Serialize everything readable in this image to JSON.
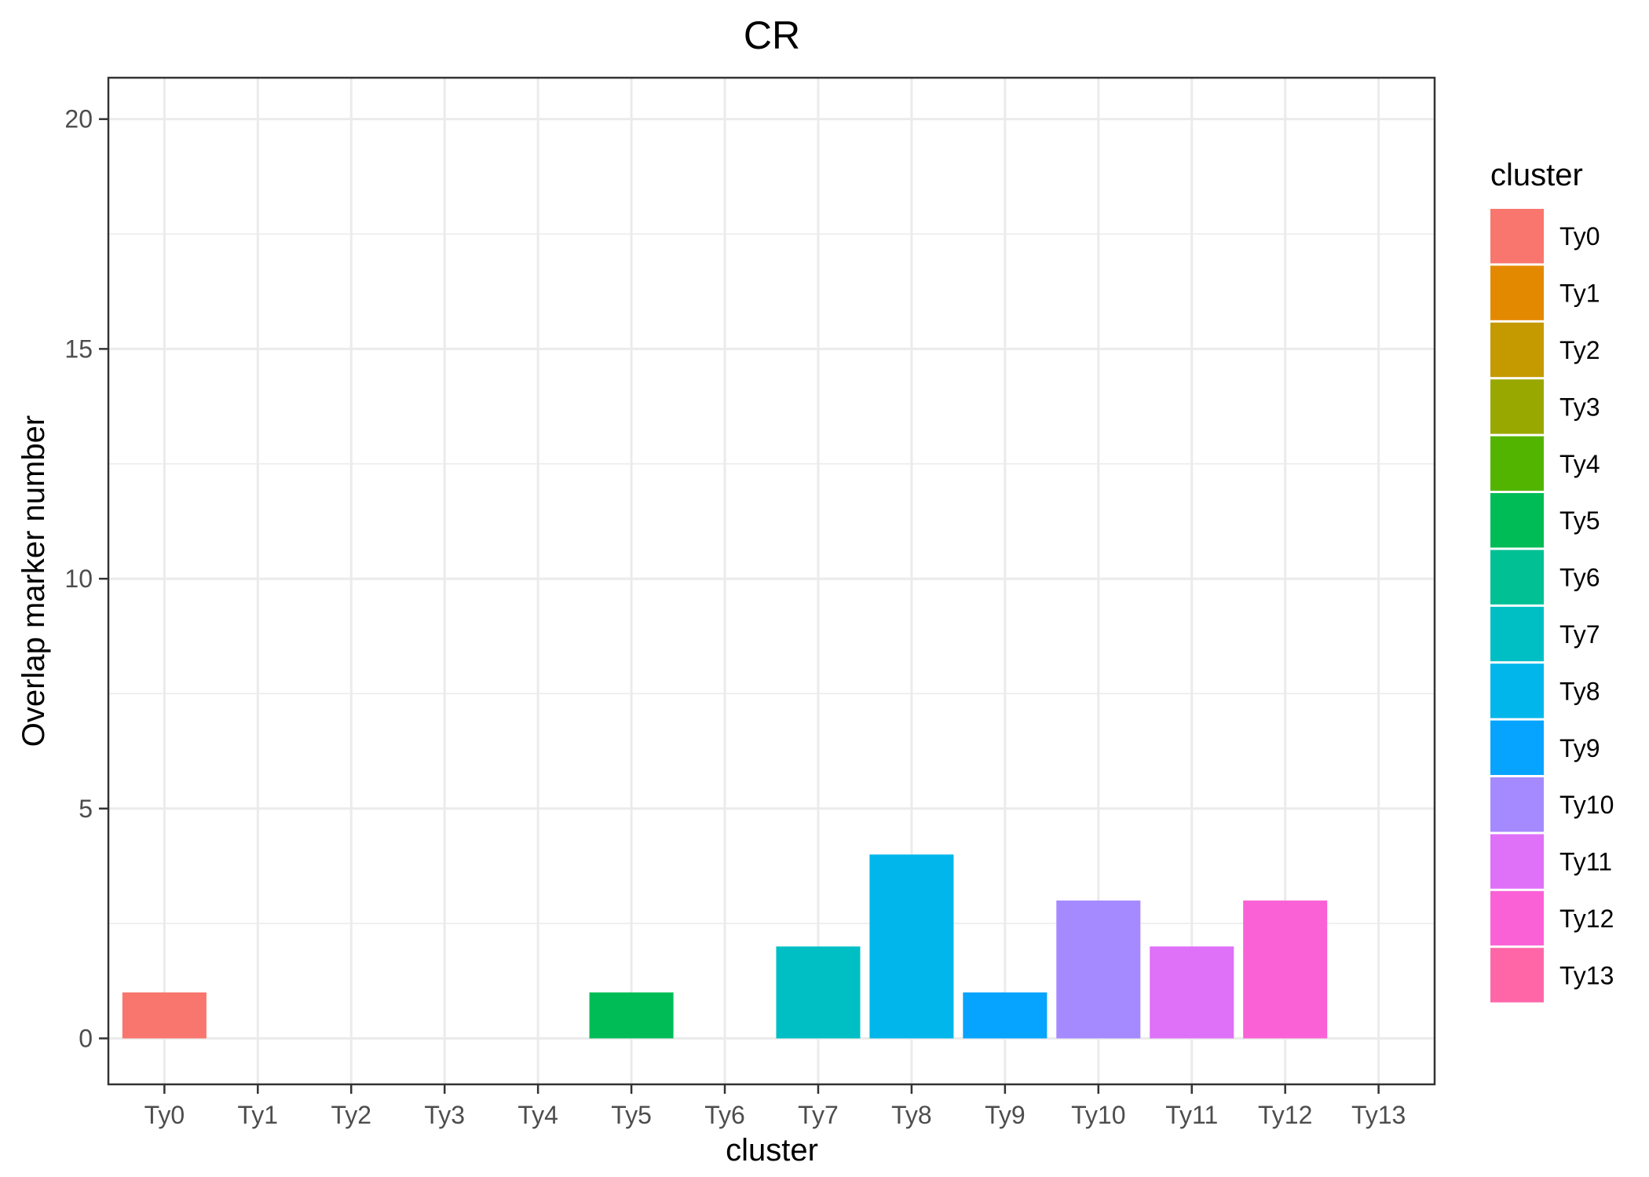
{
  "chart_data": {
    "type": "bar",
    "title": "CR",
    "xlabel": "cluster",
    "ylabel": "Overlap marker number",
    "categories": [
      "Ty0",
      "Ty1",
      "Ty2",
      "Ty3",
      "Ty4",
      "Ty5",
      "Ty6",
      "Ty7",
      "Ty8",
      "Ty9",
      "Ty10",
      "Ty11",
      "Ty12",
      "Ty13"
    ],
    "values": [
      1,
      0,
      0,
      0,
      0,
      1,
      0,
      2,
      4,
      1,
      3,
      2,
      3,
      0
    ],
    "colors": [
      "#F8766D",
      "#E38900",
      "#C49A00",
      "#99A800",
      "#53B400",
      "#00BC56",
      "#00C094",
      "#00BFC4",
      "#00B6EB",
      "#06A4FF",
      "#A58AFF",
      "#DF70F8",
      "#FB61D7",
      "#FF66A8"
    ],
    "ylim": [
      -1,
      20.9
    ],
    "yticks": [
      0,
      5,
      10,
      15,
      20
    ],
    "grid": true,
    "legend": {
      "title": "cluster",
      "position": "right"
    }
  }
}
